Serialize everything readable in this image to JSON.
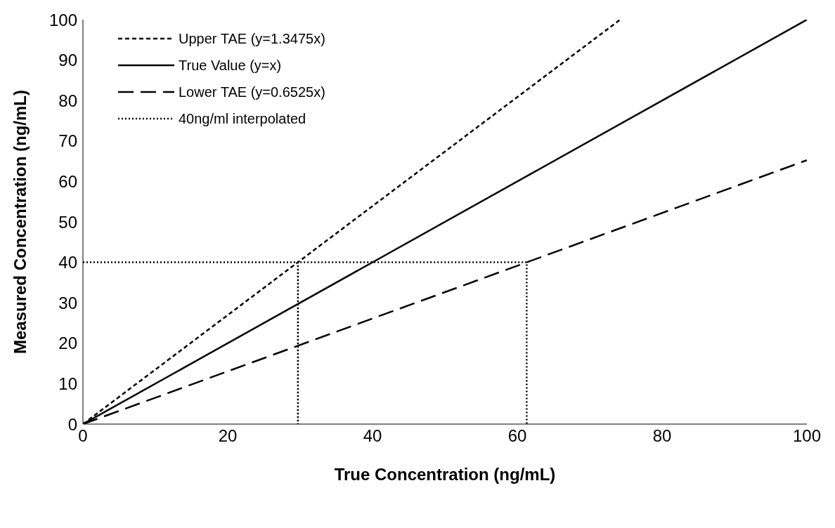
{
  "chart_data": {
    "type": "line",
    "xlabel": "True Concentration (ng/mL)",
    "ylabel": "Measured Concentration (ng/mL)",
    "xlim": [
      0,
      100
    ],
    "xticks": [
      0,
      20,
      40,
      60,
      80,
      100
    ],
    "ylim": [
      0,
      100
    ],
    "yticks": [
      0,
      10,
      20,
      30,
      40,
      50,
      60,
      70,
      80,
      90,
      100
    ],
    "grid": false,
    "legend": "top left",
    "marker": "none",
    "series": [
      {
        "name": "Upper TAE (y=1.3475x)",
        "color": "#000000",
        "line_style": "dashed",
        "x": [
          0,
          74.2
        ],
        "values": [
          0,
          100
        ]
      },
      {
        "name": "True Value (y=x)",
        "color": "#000000",
        "line_style": "solid",
        "x": [
          0,
          100
        ],
        "values": [
          0,
          100
        ]
      },
      {
        "name": "Lower TAE (y=0.6525x)",
        "color": "#000000",
        "line_style": "longdash",
        "x": [
          0,
          100
        ],
        "values": [
          0,
          65.25
        ]
      },
      {
        "name": "40ng/ml interpolated",
        "color": "#000000",
        "line_style": "dotted",
        "x": [
          0,
          29.7,
          29.7,
          29.7,
          61.3,
          61.3
        ],
        "values": [
          40,
          40,
          0,
          40,
          40,
          0
        ]
      }
    ]
  }
}
